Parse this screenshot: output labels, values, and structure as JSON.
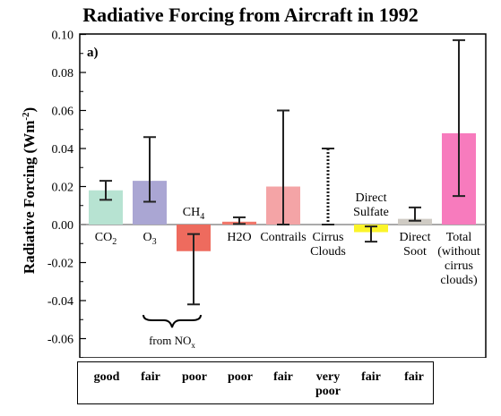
{
  "chart_data": {
    "type": "bar",
    "title": "Radiative Forcing from Aircraft in 1992",
    "ylabel": "Radiative Forcing (Wm-2)",
    "ylim": [
      -0.07,
      0.1
    ],
    "yticks": [
      "0.10",
      "0.08",
      "0.06",
      "0.04",
      "0.02",
      "0.00",
      "-0.02",
      "-0.04",
      "-0.06"
    ],
    "panel_label": "a)",
    "categories": [
      {
        "label": [
          "CO2"
        ],
        "sub": "2",
        "value": 0.018,
        "low": 0.013,
        "high": 0.023,
        "color": "#b7e3d2",
        "label_pos": "below"
      },
      {
        "label": [
          "O3"
        ],
        "sub": "3",
        "value": 0.023,
        "low": 0.012,
        "high": 0.046,
        "color": "#aaa6d3",
        "label_pos": "below"
      },
      {
        "label": [
          "CH4"
        ],
        "sub": "4",
        "value": -0.014,
        "low": -0.042,
        "high": -0.005,
        "color": "#ee6b5e",
        "label_pos": "above"
      },
      {
        "label": [
          "H2O"
        ],
        "sub": "2",
        "value": 0.0015,
        "low": 0.0003,
        "high": 0.0038,
        "color": "#f0776b",
        "label_pos": "below"
      },
      {
        "label": [
          "Contrails"
        ],
        "value": 0.02,
        "low": 0.0,
        "high": 0.06,
        "color": "#f4a4a6",
        "label_pos": "below"
      },
      {
        "label": [
          "Cirrus",
          "Clouds"
        ],
        "value": null,
        "low": 0.0,
        "high": 0.04,
        "dotted": true,
        "label_pos": "below"
      },
      {
        "label": [
          "Direct",
          "Sulfate"
        ],
        "value": -0.004,
        "low": -0.009,
        "high": -0.001,
        "color": "#fbf42a",
        "label_pos": "above"
      },
      {
        "label": [
          "Direct",
          "Soot"
        ],
        "value": 0.003,
        "low": 0.002,
        "high": 0.009,
        "color": "#cfcbc4",
        "label_pos": "below"
      },
      {
        "label": [
          "Total",
          "(without",
          "cirrus",
          "clouds)"
        ],
        "value": 0.048,
        "low": 0.015,
        "high": 0.097,
        "color": "#f77bbd",
        "label_pos": "below"
      }
    ],
    "bracket_label": "from NOx",
    "confidence": [
      "good",
      "fair",
      "poor",
      "poor",
      "fair",
      "very\npoor",
      "fair",
      "fair"
    ]
  }
}
